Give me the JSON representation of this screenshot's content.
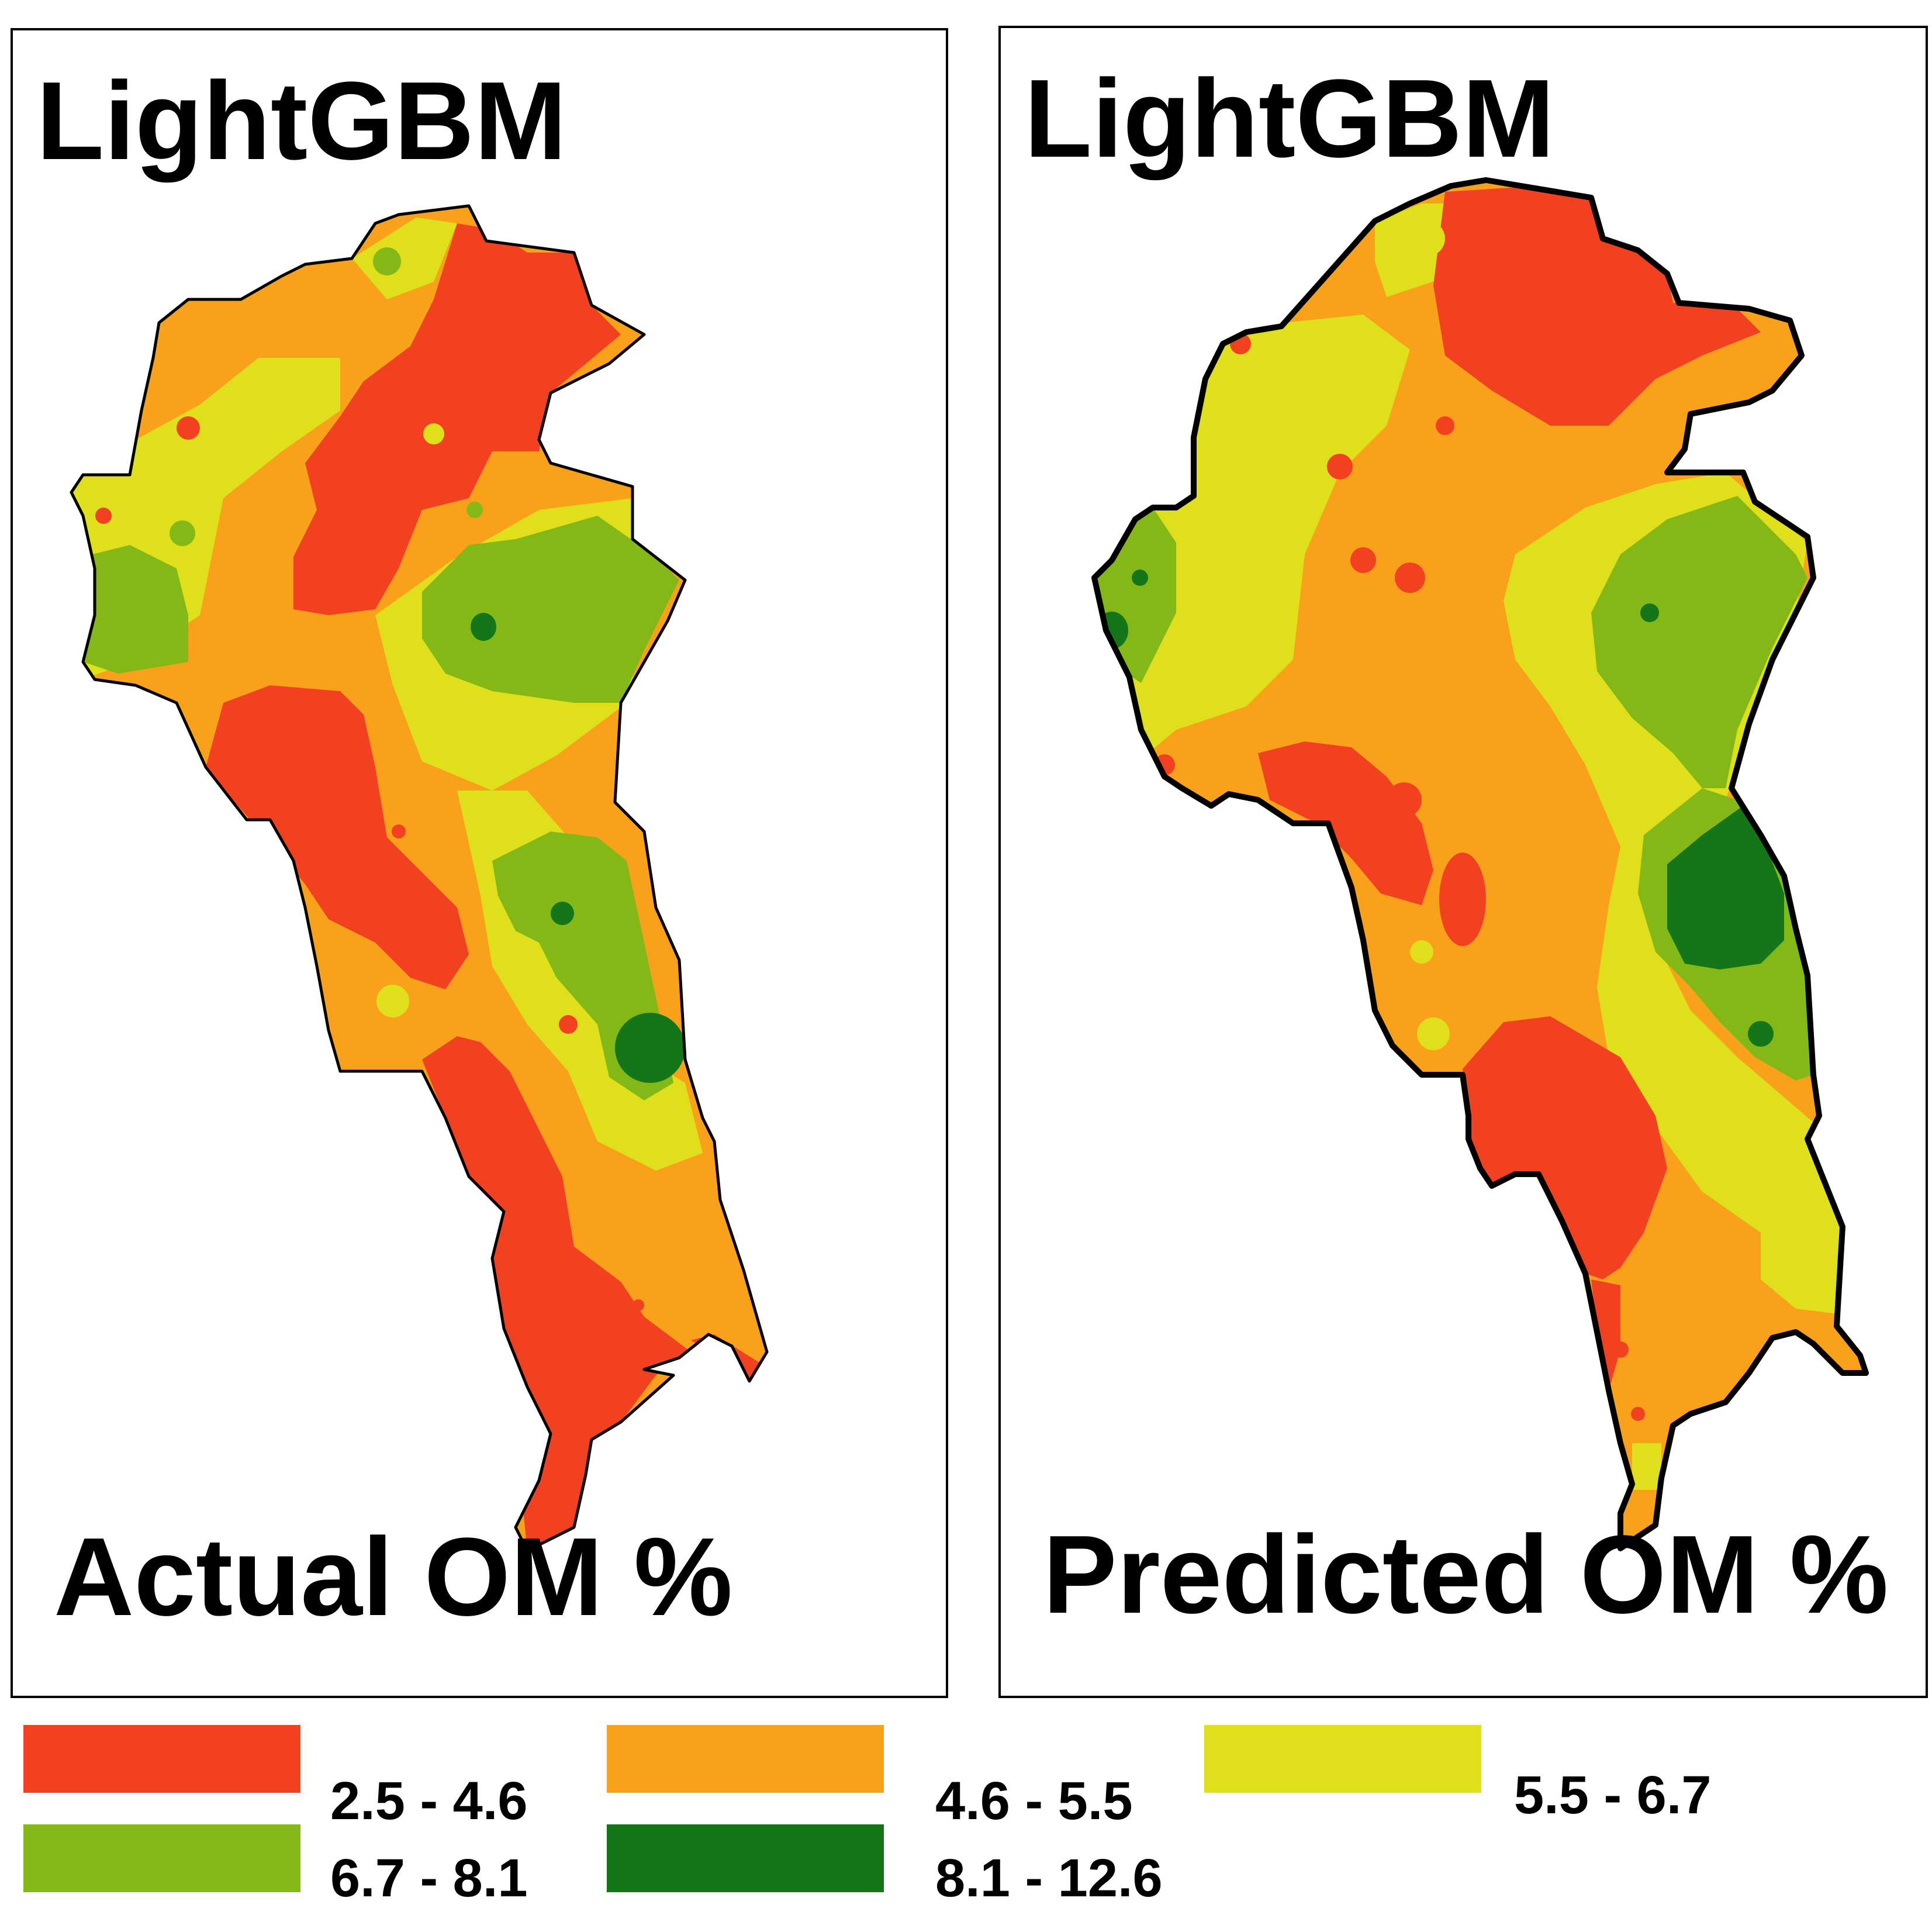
{
  "panels": [
    {
      "model": "LightGBM",
      "caption": "Actual OM %"
    },
    {
      "model": "LightGBM",
      "caption": "Predicted OM %"
    }
  ],
  "legend": [
    {
      "label": "2.5 - 4.6",
      "color": "#f24120"
    },
    {
      "label": "4.6 - 5.5",
      "color": "#f9a11b"
    },
    {
      "label": "5.5 - 6.7",
      "color": "#dfe01b"
    },
    {
      "label": "6.7 - 8.1",
      "color": "#84b816"
    },
    {
      "label": "8.1 - 12.6",
      "color": "#157519"
    }
  ]
}
